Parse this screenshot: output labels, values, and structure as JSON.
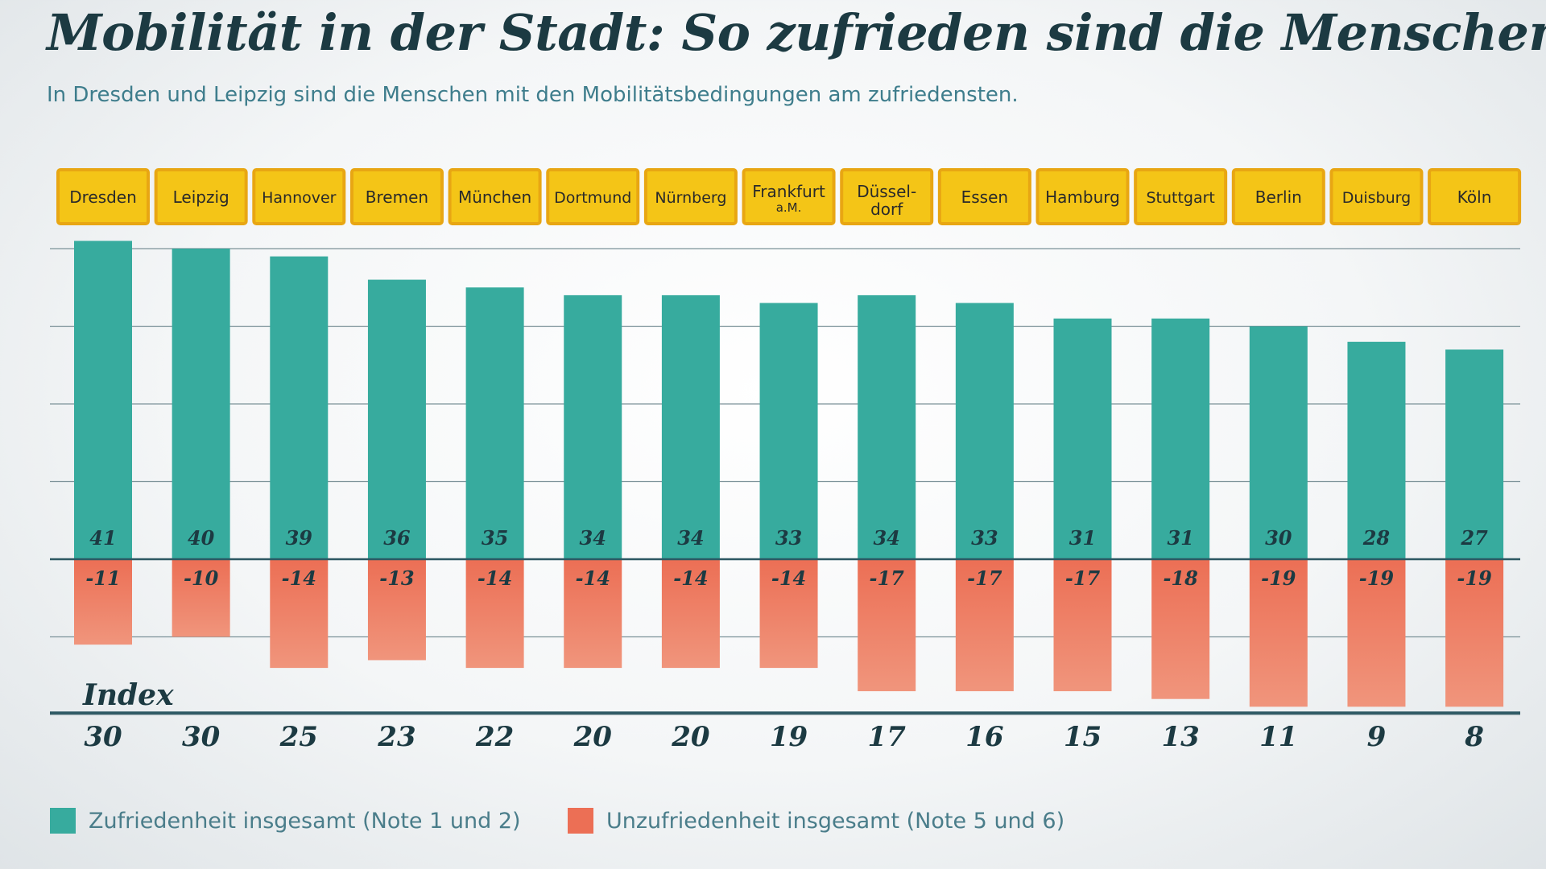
{
  "title": "Mobilität in der Stadt: So zufrieden sind die Menschen",
  "subtitle": "In Dresden und Leipzig sind die Menschen mit den Mobilitätsbedingungen am zufriedensten.",
  "colors": {
    "satisfaction": "#37ab9e",
    "dissatisfaction": "#ec6f55",
    "label_box": "#f4c517",
    "label_border": "#e8a613",
    "axis": "#2d5863",
    "grid": "#7c9299",
    "text_dark": "#1c3a42"
  },
  "chart_data": {
    "type": "bar",
    "categories": [
      "Dresden",
      "Leipzig",
      "Hannover",
      "Bremen",
      "München",
      "Dortmund",
      "Nürnberg",
      "Frankfurt a.M.",
      "Düssel-dorf",
      "Essen",
      "Hamburg",
      "Stuttgart",
      "Berlin",
      "Duisburg",
      "Köln"
    ],
    "category_labels": [
      {
        "main": "Dresden",
        "sub": ""
      },
      {
        "main": "Leipzig",
        "sub": ""
      },
      {
        "main": "Hannover",
        "sub": ""
      },
      {
        "main": "Bremen",
        "sub": ""
      },
      {
        "main": "München",
        "sub": ""
      },
      {
        "main": "Dortmund",
        "sub": ""
      },
      {
        "main": "Nürnberg",
        "sub": ""
      },
      {
        "main": "Frankfurt",
        "sub": "a.M."
      },
      {
        "main": "Düssel-",
        "sub": "dorf"
      },
      {
        "main": "Essen",
        "sub": ""
      },
      {
        "main": "Hamburg",
        "sub": ""
      },
      {
        "main": "Stuttgart",
        "sub": ""
      },
      {
        "main": "Berlin",
        "sub": ""
      },
      {
        "main": "Duisburg",
        "sub": ""
      },
      {
        "main": "Köln",
        "sub": ""
      }
    ],
    "series": [
      {
        "name": "Zufriedenheit insgesamt (Note 1 und 2)",
        "values": [
          41,
          40,
          39,
          36,
          35,
          34,
          34,
          33,
          34,
          33,
          31,
          31,
          30,
          28,
          27
        ]
      },
      {
        "name": "Unzufriedenheit insgesamt (Note 5 und 6)",
        "values": [
          -11,
          -10,
          -14,
          -13,
          -14,
          -14,
          -14,
          -14,
          -17,
          -17,
          -17,
          -18,
          -19,
          -19,
          -19
        ]
      }
    ],
    "index_label": "Index",
    "index_values": [
      30,
      30,
      25,
      23,
      22,
      20,
      20,
      19,
      17,
      16,
      15,
      13,
      11,
      9,
      8
    ],
    "ylim": [
      -20,
      40
    ],
    "grid_step": 10,
    "grid": true,
    "legend": "bottom-left"
  },
  "legend": {
    "satisfaction": "Zufriedenheit insgesamt (Note 1 und 2)",
    "dissatisfaction": "Unzufriedenheit insgesamt (Note 5 und 6)"
  }
}
